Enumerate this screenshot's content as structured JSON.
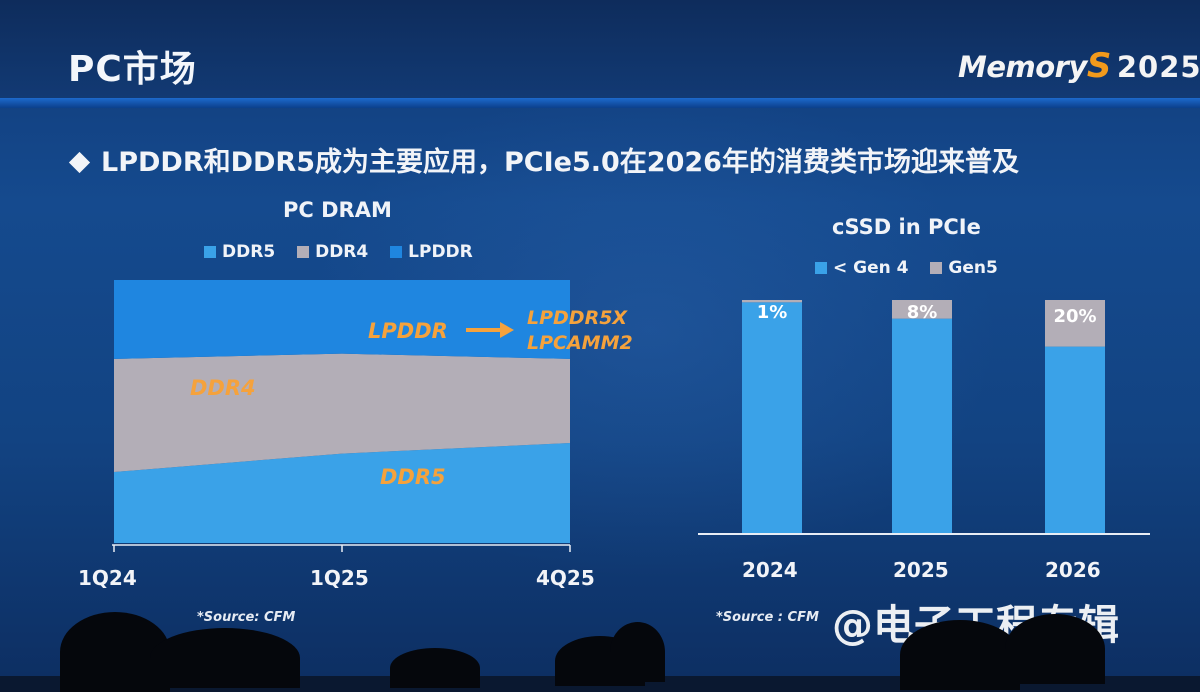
{
  "slide": {
    "title": "PC市场",
    "logo": {
      "word": "Memory",
      "s_mark": "S",
      "year": "2025"
    },
    "bullet": "LPDDR和DDR5成为主要应用，PCIe5.0在2026年的消费类市场迎来普及",
    "bullet_icon": "diamond-icon"
  },
  "chart_data": [
    {
      "type": "area",
      "title": "PC DRAM",
      "legend": [
        "DDR5",
        "DDR4",
        "LPDDR"
      ],
      "x": [
        "1Q24",
        "1Q25",
        "4Q25"
      ],
      "stacked_percent": true,
      "series": [
        {
          "name": "DDR5",
          "values": [
            27,
            34,
            38
          ],
          "color": "#3aa2e8"
        },
        {
          "name": "DDR4",
          "values": [
            43,
            38,
            32
          ],
          "color": "#b3aeb7"
        },
        {
          "name": "LPDDR",
          "values": [
            30,
            28,
            30
          ],
          "color": "#1f86e0"
        }
      ],
      "annotations": {
        "ddr4": "DDR4",
        "ddr5": "DDR5",
        "lpddr": "LPDDR",
        "lpddr_targets": [
          "LPDDR5X",
          "LPCAMM2"
        ]
      },
      "annotation_color": "#f5a23c",
      "source": "*Source: CFM"
    },
    {
      "type": "bar",
      "title": "cSSD in PCIe",
      "legend": [
        "< Gen 4",
        "Gen5"
      ],
      "categories": [
        "2024",
        "2025",
        "2026"
      ],
      "stacked_percent": true,
      "series": [
        {
          "name": "< Gen 4",
          "values": [
            99,
            92,
            80
          ],
          "color": "#3aa2e8"
        },
        {
          "name": "Gen5",
          "values": [
            1,
            8,
            20
          ],
          "color": "#b3aeb7",
          "labels": [
            "1%",
            "8%",
            "20%"
          ]
        }
      ],
      "source": "*Source : CFM"
    }
  ],
  "watermark": "@电子工程专辑"
}
